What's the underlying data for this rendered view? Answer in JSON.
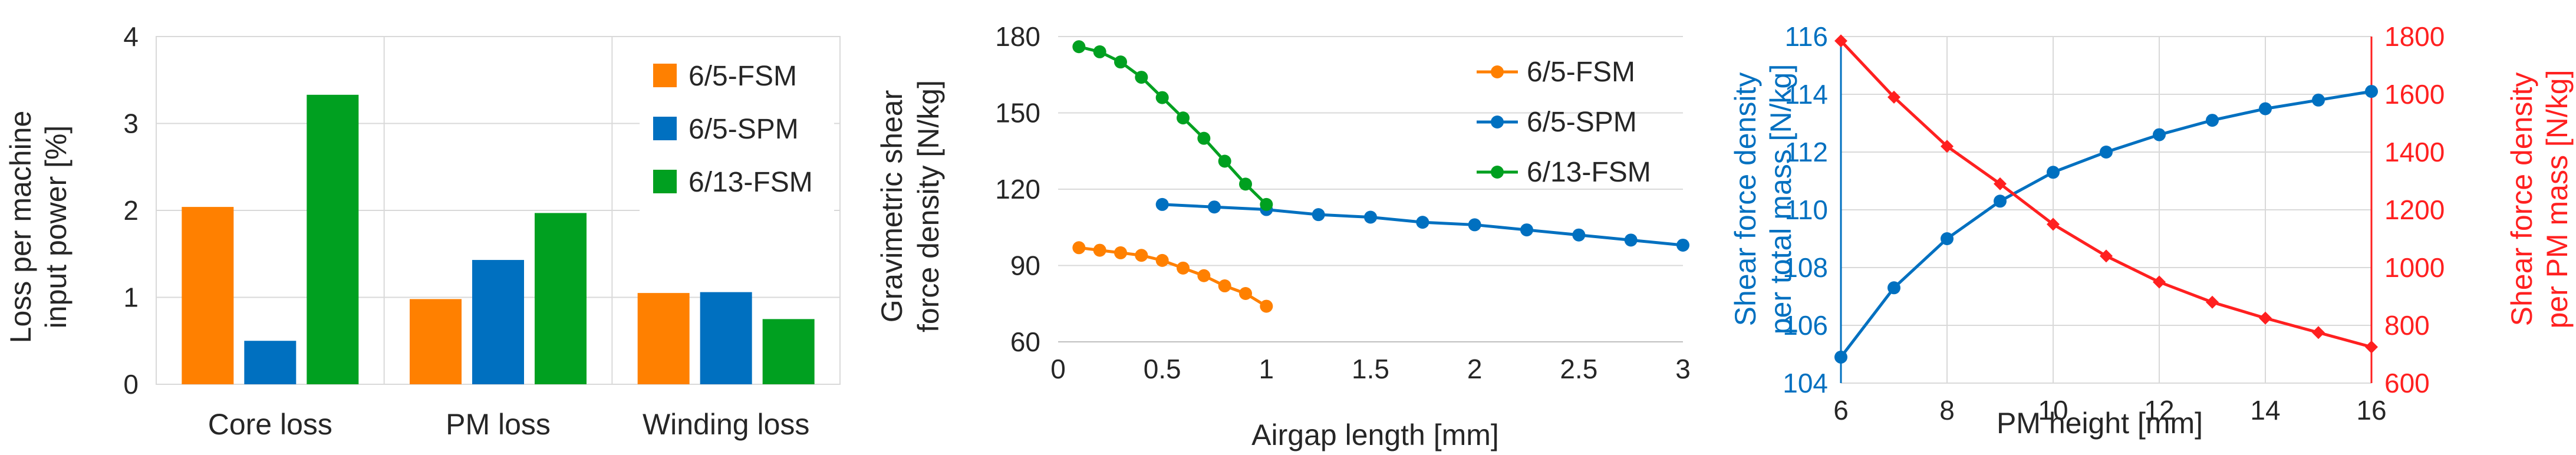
{
  "colors": {
    "orange": "#FF8000",
    "blue": "#0070C0",
    "green": "#00A020",
    "red": "#FF2020",
    "text": "#262626"
  },
  "chart_data": [
    {
      "type": "bar",
      "title": "",
      "ylabel_lines": [
        "Loss per machine",
        "input power [%]"
      ],
      "xlabel": "",
      "ylim": [
        0,
        4
      ],
      "yticks": [
        0,
        1,
        2,
        3,
        4
      ],
      "categories": [
        "Core loss",
        "PM loss",
        "Winding loss"
      ],
      "series": [
        {
          "name": "6/5-FSM",
          "color_key": "orange",
          "values": [
            2.04,
            0.98,
            1.05
          ]
        },
        {
          "name": "6/5-SPM",
          "color_key": "blue",
          "values": [
            0.5,
            1.43,
            1.06
          ]
        },
        {
          "name": "6/13-FSM",
          "color_key": "green",
          "values": [
            3.33,
            1.97,
            0.75
          ]
        }
      ],
      "grid": true,
      "legend_position": "top-right"
    },
    {
      "type": "line",
      "title": "",
      "ylabel_lines": [
        "Gravimetric shear",
        "force density [N/kg]"
      ],
      "xlabel": "Airgap length [mm]",
      "xlim": [
        0,
        3
      ],
      "ylim": [
        60,
        180
      ],
      "xticks": [
        "0",
        "0.5",
        "1",
        "1.5",
        "2",
        "2.5",
        "3"
      ],
      "yticks": [
        60,
        90,
        120,
        150,
        180
      ],
      "series": [
        {
          "name": "6/5-FSM",
          "color_key": "orange",
          "x": [
            0.1,
            0.2,
            0.3,
            0.4,
            0.5,
            0.6,
            0.7,
            0.8,
            0.9,
            1.0
          ],
          "y": [
            97,
            96,
            95,
            94,
            92,
            89,
            86,
            82,
            79,
            74
          ]
        },
        {
          "name": "6/5-SPM",
          "color_key": "blue",
          "x": [
            0.5,
            0.75,
            1.0,
            1.25,
            1.5,
            1.75,
            2.0,
            2.25,
            2.5,
            2.75,
            3.0
          ],
          "y": [
            114,
            113,
            112,
            110,
            109,
            107,
            106,
            104,
            102,
            100,
            98
          ]
        },
        {
          "name": "6/13-FSM",
          "color_key": "green",
          "x": [
            0.1,
            0.2,
            0.3,
            0.4,
            0.5,
            0.6,
            0.7,
            0.8,
            0.9,
            1.0
          ],
          "y": [
            176,
            174,
            170,
            164,
            156,
            148,
            140,
            131,
            122,
            114
          ]
        }
      ],
      "grid": true,
      "legend_position": "top-right"
    },
    {
      "type": "line",
      "title": "",
      "xlabel": "PM height [mm]",
      "ylabel_left_lines": [
        "Shear force density",
        "per total mass [N/kg]"
      ],
      "ylabel_right_lines": [
        "Shear force density",
        "per PM mass [N/kg]"
      ],
      "xlim": [
        6,
        16
      ],
      "ylim_left": [
        104,
        116
      ],
      "ylim_right": [
        600,
        1800
      ],
      "xticks": [
        6,
        8,
        10,
        12,
        14,
        16
      ],
      "yticks_left": [
        104,
        106,
        108,
        110,
        112,
        114,
        116
      ],
      "yticks_right": [
        600,
        800,
        1000,
        1200,
        1400,
        1600,
        1800
      ],
      "series": [
        {
          "axis": "left",
          "color_key": "blue",
          "marker": "circle",
          "x": [
            6,
            7,
            8,
            9,
            10,
            11,
            12,
            13,
            14,
            15,
            16
          ],
          "y": [
            104.9,
            107.3,
            109.0,
            110.3,
            111.3,
            112.0,
            112.6,
            113.1,
            113.5,
            113.8,
            114.1
          ]
        },
        {
          "axis": "right",
          "color_key": "red",
          "marker": "diamond",
          "x": [
            6,
            7,
            8,
            9,
            10,
            11,
            12,
            13,
            14,
            15,
            16
          ],
          "y": [
            1785,
            1590,
            1420,
            1290,
            1150,
            1040,
            950,
            880,
            825,
            775,
            725
          ]
        }
      ],
      "grid": true
    }
  ]
}
